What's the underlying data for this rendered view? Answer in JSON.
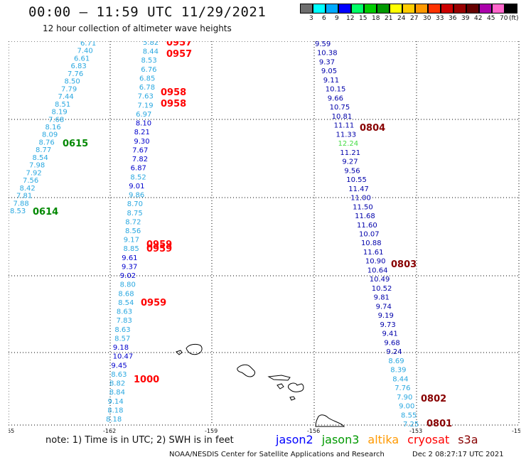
{
  "header": {
    "title": "00:00 — 11:59 UTC 11/29/2021",
    "subtitle": "12 hour collection of altimeter wave heights"
  },
  "color_scale": {
    "unit": "(ft)",
    "labels": [
      "3",
      "6",
      "9",
      "12",
      "15",
      "18",
      "21",
      "24",
      "27",
      "30",
      "33",
      "36",
      "39",
      "42",
      "45",
      "70"
    ],
    "colors": [
      "#6e6e6e",
      "#00ffff",
      "#00aaff",
      "#0000ff",
      "#00ff66",
      "#00cc00",
      "#009900",
      "#ffff00",
      "#ffcc00",
      "#ff9900",
      "#ff3300",
      "#cc0000",
      "#990000",
      "#660000",
      "#aa00aa",
      "#ff66cc",
      "#000000"
    ]
  },
  "axes": {
    "lon_labels": [
      "-165",
      "-162",
      "-159",
      "-156",
      "-153",
      "-150"
    ],
    "lat_labels": [
      "30",
      "28",
      "26",
      "24",
      "22",
      "20"
    ]
  },
  "tracks": {
    "track_a_values": [
      "6.71",
      "7.40",
      "6.61",
      "6.83",
      "7.76",
      "8.50",
      "7.79",
      "7.44",
      "8.51",
      "8.19",
      "7.68",
      "8.16",
      "8.09",
      "8.76",
      "8.77",
      "8.54",
      "7.98",
      "7.92",
      "7.56",
      "8.42",
      "7.81",
      "7.88",
      "8.53"
    ],
    "track_a_color": "#2aa8e0",
    "track_b_values": [
      "5.82",
      "8.44",
      "8.53",
      "6.76",
      "6.85",
      "6.78",
      "7.63",
      "7.19",
      "6.97",
      "8.10",
      "8.21",
      "9.30",
      "7.67",
      "7.82",
      "6.87",
      "8.52",
      "9.01",
      "9.86",
      "8.70",
      "8.75",
      "8.72",
      "8.56",
      "9.17",
      "8.85",
      "9.61",
      "9.37",
      "9.02",
      "8.80",
      "8.68",
      "8.54",
      "8.63",
      "7.83",
      "8.63",
      "8.57",
      "9.18",
      "10.47",
      "9.45",
      "8.63",
      "8.82",
      "8.84",
      "9.14",
      "8.18",
      "8.18"
    ],
    "track_b_colors": [
      "#2aa8e0",
      "#0000cc"
    ],
    "track_c_values": [
      "9.59",
      "10.38",
      "9.37",
      "9.05",
      "9.11",
      "10.15",
      "9.66",
      "10.75",
      "10.81",
      "11.11",
      "11.33",
      "12.24",
      "11.21",
      "9.27",
      "9.56",
      "10.55",
      "11.47",
      "11.00",
      "11.50",
      "11.68",
      "11.60",
      "10.07",
      "10.88",
      "11.61",
      "10.90",
      "10.64",
      "10.49",
      "10.52",
      "9.81",
      "9.74",
      "9.19",
      "9.73",
      "9.41",
      "9.68",
      "9.24",
      "8.69",
      "8.39",
      "8.44",
      "7.76",
      "7.90",
      "9.00",
      "8.55",
      "7.25"
    ],
    "track_c_color": "#0000aa",
    "track_c_green_value": "12.24",
    "track_c_cyan_from": "8.69"
  },
  "time_labels": [
    {
      "text": "0957",
      "color": "#ff0000"
    },
    {
      "text": "0957",
      "color": "#ff0000"
    },
    {
      "text": "0958",
      "color": "#ff0000"
    },
    {
      "text": "0958",
      "color": "#ff0000"
    },
    {
      "text": "0615",
      "color": "#008800"
    },
    {
      "text": "0614",
      "color": "#008800"
    },
    {
      "text": "0959",
      "color": "#ff0000"
    },
    {
      "text": "0959",
      "color": "#ff0000"
    },
    {
      "text": "0959",
      "color": "#ff0000"
    },
    {
      "text": "1000",
      "color": "#ff0000"
    },
    {
      "text": "0804",
      "color": "#880000"
    },
    {
      "text": "0803",
      "color": "#880000"
    },
    {
      "text": "0802",
      "color": "#880000"
    },
    {
      "text": "0801",
      "color": "#880000"
    }
  ],
  "footer": {
    "note": "note:  1) Time is in UTC;  2) SWH is in feet",
    "legend": [
      {
        "name": "jason2",
        "color": "#0000ff"
      },
      {
        "name": "jason3",
        "color": "#009900"
      },
      {
        "name": "altika",
        "color": "#ff9900"
      },
      {
        "name": "cryosat",
        "color": "#ff0000"
      },
      {
        "name": "s3a",
        "color": "#880000"
      }
    ],
    "credit": "NOAA/NESDIS Center for Satellite Applications and Research",
    "generated": "Dec  2 08:27:17 UTC 2021"
  }
}
